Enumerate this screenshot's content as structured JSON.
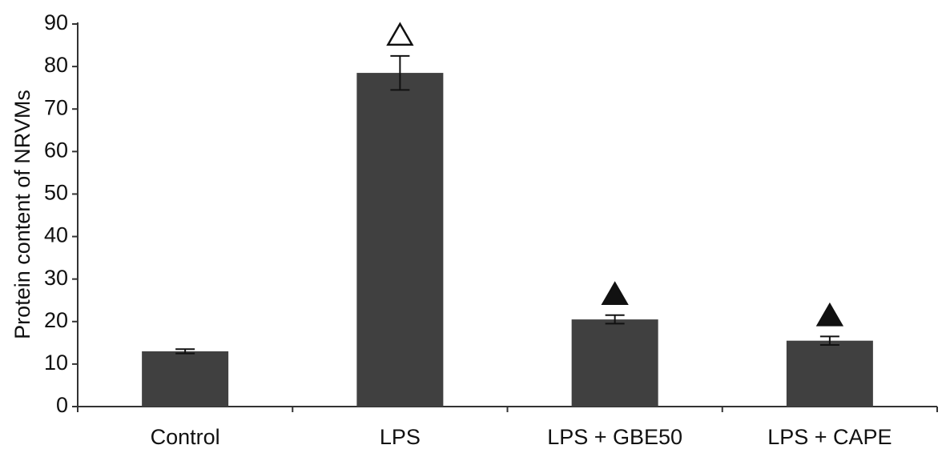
{
  "chart_data": {
    "type": "bar",
    "y_label": "Protein content of NRVMs",
    "categories": [
      "Control",
      "LPS",
      "LPS + GBE50",
      "LPS + CAPE"
    ],
    "values": [
      13,
      78.5,
      20.5,
      15.5
    ],
    "errors": [
      0.5,
      4,
      1,
      1
    ],
    "color": "#404040",
    "ylim": [
      0,
      90
    ],
    "yticks": [
      0,
      10,
      20,
      30,
      40,
      50,
      60,
      70,
      80,
      90
    ]
  }
}
